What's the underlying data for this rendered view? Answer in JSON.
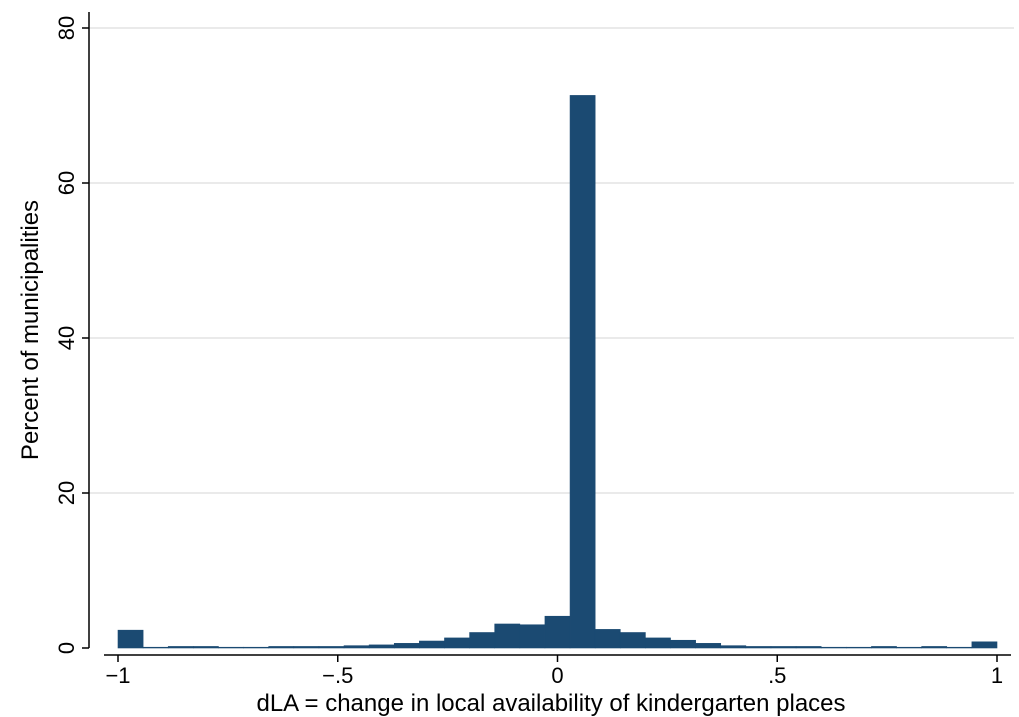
{
  "chart_data": {
    "type": "bar",
    "title": "",
    "xlabel": "dLA = change in local availability of kindergarten places",
    "ylabel": "Percent of municipalities",
    "xlim": [
      -1.03,
      1.03
    ],
    "ylim": [
      0,
      82
    ],
    "x_ticks": [
      {
        "value": -1,
        "label": "−1"
      },
      {
        "value": -0.5,
        "label": "−.5"
      },
      {
        "value": 0,
        "label": "0"
      },
      {
        "value": 0.5,
        "label": ".5"
      },
      {
        "value": 1,
        "label": "1"
      }
    ],
    "y_ticks": [
      {
        "value": 0,
        "label": "0"
      },
      {
        "value": 20,
        "label": "20"
      },
      {
        "value": 40,
        "label": "40"
      },
      {
        "value": 60,
        "label": "60"
      },
      {
        "value": 80,
        "label": "80"
      }
    ],
    "grid": true,
    "bar_color": "#1b4a72",
    "bin_width": 0.05714,
    "bins_left_edge": [
      -1.0,
      -0.94286,
      -0.88571,
      -0.82857,
      -0.77143,
      -0.71429,
      -0.65714,
      -0.6,
      -0.54286,
      -0.48571,
      -0.42857,
      -0.37143,
      -0.31429,
      -0.25714,
      -0.2,
      -0.14286,
      -0.08571,
      -0.02857,
      0.02857,
      0.08571,
      0.14286,
      0.2,
      0.25714,
      0.31429,
      0.37143,
      0.42857,
      0.48571,
      0.54286,
      0.6,
      0.65714,
      0.71429,
      0.77143,
      0.82857,
      0.88571,
      0.94286
    ],
    "values": [
      2.3,
      0.1,
      0.2,
      0.2,
      0.1,
      0.1,
      0.2,
      0.2,
      0.2,
      0.3,
      0.4,
      0.6,
      0.9,
      1.3,
      2.0,
      3.1,
      3.0,
      4.1,
      71.3,
      2.4,
      2.0,
      1.3,
      1.0,
      0.6,
      0.3,
      0.2,
      0.2,
      0.2,
      0.1,
      0.1,
      0.2,
      0.1,
      0.2,
      0.1,
      0.8
    ]
  }
}
